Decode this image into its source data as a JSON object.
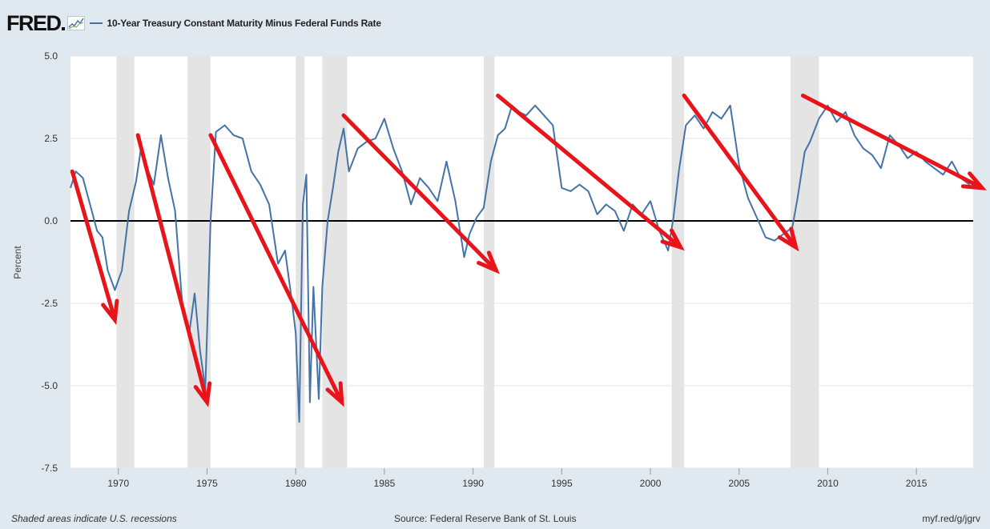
{
  "header": {
    "logo_text": "FRED",
    "series_title": "10-Year Treasury Constant Maturity Minus Federal Funds Rate"
  },
  "footer": {
    "recession_note": "Shaded areas indicate U.S. recessions",
    "source": "Source: Federal Reserve Bank of St. Louis",
    "short_url": "myf.red/g/jgrv"
  },
  "colors": {
    "series": "#4572a7",
    "arrows": "#e8141a",
    "recession": "#e4e4e4",
    "plot_background": "#ffffff",
    "page_background": "#e1e9f0"
  },
  "chart_data": {
    "type": "line",
    "title": "10-Year Treasury Constant Maturity Minus Federal Funds Rate",
    "xlabel": "",
    "ylabel": "Percent",
    "xlim": [
      1967.3,
      2018.2
    ],
    "ylim": [
      -7.5,
      5.0
    ],
    "y_ticks": [
      "5.0",
      "2.5",
      "0.0",
      "-2.5",
      "-5.0",
      "-7.5"
    ],
    "x_ticks": [
      "1970",
      "1975",
      "1980",
      "1985",
      "1990",
      "1995",
      "2000",
      "2005",
      "2010",
      "2015"
    ],
    "grid": "horizontal",
    "recessions": [
      [
        1969.9,
        1970.9
      ],
      [
        1973.9,
        1975.2
      ],
      [
        1980.0,
        1980.5
      ],
      [
        1981.5,
        1982.9
      ],
      [
        1990.6,
        1991.2
      ],
      [
        2001.2,
        2001.9
      ],
      [
        2007.9,
        2009.5
      ]
    ],
    "series": [
      {
        "name": "10-Year Treasury Constant Maturity Minus Federal Funds Rate",
        "x": [
          1967.3,
          1967.6,
          1968.0,
          1968.4,
          1968.8,
          1969.1,
          1969.4,
          1969.8,
          1970.2,
          1970.6,
          1971.0,
          1971.3,
          1971.6,
          1972.0,
          1972.4,
          1972.8,
          1973.2,
          1973.6,
          1974.0,
          1974.3,
          1974.6,
          1974.9,
          1975.2,
          1975.5,
          1976.0,
          1976.5,
          1977.0,
          1977.5,
          1978.0,
          1978.5,
          1979.0,
          1979.4,
          1979.8,
          1980.0,
          1980.2,
          1980.4,
          1980.6,
          1980.8,
          1981.0,
          1981.3,
          1981.5,
          1981.8,
          1982.1,
          1982.4,
          1982.7,
          1983.0,
          1983.5,
          1984.0,
          1984.5,
          1985.0,
          1985.5,
          1986.0,
          1986.5,
          1987.0,
          1987.5,
          1988.0,
          1988.5,
          1989.0,
          1989.5,
          1989.8,
          1990.2,
          1990.6,
          1991.0,
          1991.4,
          1991.8,
          1992.2,
          1992.6,
          1993.0,
          1993.5,
          1994.0,
          1994.5,
          1995.0,
          1995.5,
          1996.0,
          1996.5,
          1997.0,
          1997.5,
          1998.0,
          1998.5,
          1999.0,
          1999.5,
          2000.0,
          2000.5,
          2001.0,
          2001.3,
          2001.6,
          2002.0,
          2002.5,
          2003.0,
          2003.5,
          2004.0,
          2004.5,
          2005.0,
          2005.5,
          2006.0,
          2006.5,
          2007.0,
          2007.5,
          2008.0,
          2008.3,
          2008.7,
          2009.0,
          2009.5,
          2010.0,
          2010.5,
          2011.0,
          2011.5,
          2012.0,
          2012.5,
          2013.0,
          2013.5,
          2014.0,
          2014.5,
          2015.0,
          2015.5,
          2016.0,
          2016.5,
          2017.0,
          2017.5,
          2018.0
        ],
        "values": [
          1.0,
          1.5,
          1.3,
          0.5,
          -0.3,
          -0.5,
          -1.5,
          -2.1,
          -1.5,
          0.3,
          1.2,
          2.3,
          1.6,
          1.1,
          2.6,
          1.3,
          0.3,
          -2.5,
          -3.4,
          -2.2,
          -3.9,
          -5.1,
          0.0,
          2.7,
          2.9,
          2.6,
          2.5,
          1.5,
          1.1,
          0.5,
          -1.3,
          -0.9,
          -2.5,
          -3.4,
          -6.1,
          0.5,
          1.4,
          -5.5,
          -2.0,
          -5.4,
          -2.0,
          0.0,
          1.0,
          2.1,
          2.8,
          1.5,
          2.2,
          2.4,
          2.5,
          3.1,
          2.2,
          1.5,
          0.5,
          1.3,
          1.0,
          0.6,
          1.8,
          0.6,
          -1.1,
          -0.4,
          0.1,
          0.4,
          1.8,
          2.6,
          2.8,
          3.5,
          3.3,
          3.2,
          3.5,
          3.2,
          2.9,
          1.0,
          0.9,
          1.1,
          0.9,
          0.2,
          0.5,
          0.3,
          -0.3,
          0.5,
          0.2,
          0.6,
          -0.3,
          -0.9,
          0.1,
          1.5,
          2.9,
          3.2,
          2.8,
          3.3,
          3.1,
          3.5,
          1.7,
          0.7,
          0.1,
          -0.5,
          -0.6,
          -0.4,
          -0.2,
          0.7,
          2.1,
          2.4,
          3.1,
          3.5,
          3.0,
          3.3,
          2.6,
          2.2,
          2.0,
          1.6,
          2.6,
          2.3,
          1.9,
          2.1,
          1.8,
          1.6,
          1.4,
          1.8,
          1.3,
          1.1
        ]
      }
    ],
    "annotations": [
      {
        "type": "arrow",
        "from": [
          1967.4,
          1.5
        ],
        "to": [
          1969.8,
          -3.0
        ]
      },
      {
        "type": "arrow",
        "from": [
          1971.1,
          2.6
        ],
        "to": [
          1975.0,
          -5.5
        ]
      },
      {
        "type": "arrow",
        "from": [
          1975.2,
          2.6
        ],
        "to": [
          1982.6,
          -5.5
        ]
      },
      {
        "type": "arrow",
        "from": [
          1982.7,
          3.2
        ],
        "to": [
          1991.3,
          -1.5
        ]
      },
      {
        "type": "arrow",
        "from": [
          1991.4,
          3.8
        ],
        "to": [
          2001.7,
          -0.8
        ]
      },
      {
        "type": "arrow",
        "from": [
          2001.9,
          3.8
        ],
        "to": [
          2008.2,
          -0.8
        ]
      },
      {
        "type": "arrow",
        "from": [
          2008.6,
          3.8
        ],
        "to": [
          2018.7,
          1.0
        ]
      }
    ]
  }
}
